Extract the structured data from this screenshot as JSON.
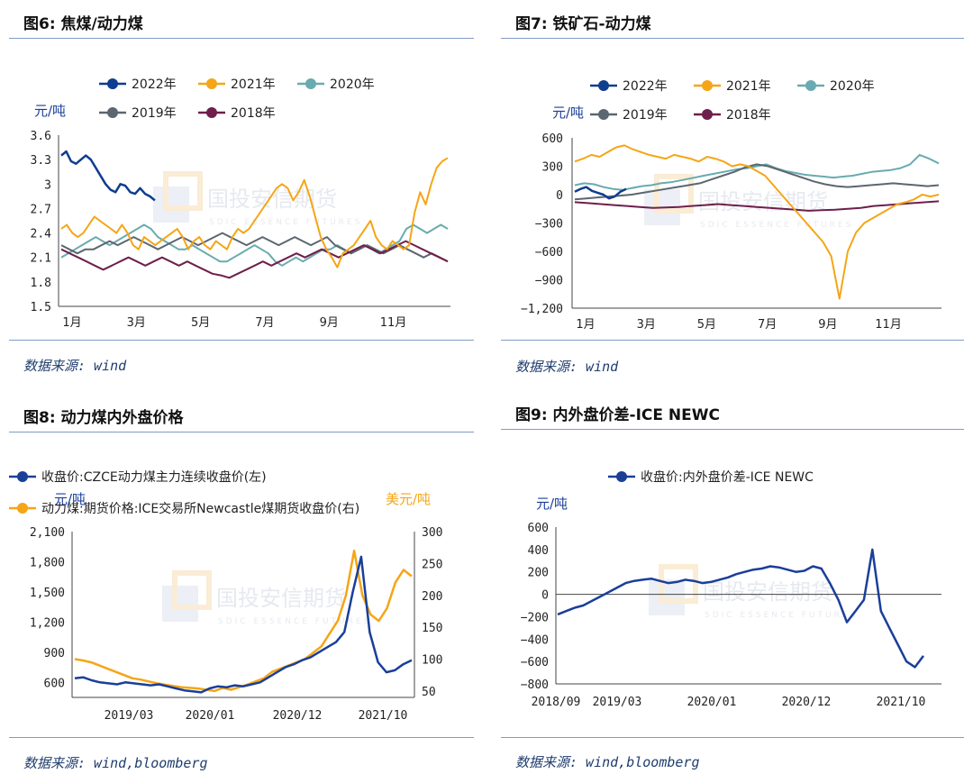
{
  "watermark": {
    "cn": "国投安信期货",
    "en": "SDIC ESSENCE FUTURES"
  },
  "colors": {
    "s2022": "#0f3d8f",
    "s2021": "#f5a516",
    "s2020": "#69abb0",
    "s2019": "#5c6670",
    "s2018": "#6e1f4b",
    "rule": "#7f9bc7",
    "blue_main": "#1a3f99"
  },
  "panels": {
    "fig6": {
      "title": "图6: 焦煤/动力煤",
      "source": "数据来源: wind",
      "chart_data": {
        "type": "line",
        "title": "图6: 焦煤/动力煤",
        "ylabel": "元/吨",
        "ylim": [
          1.5,
          3.6
        ],
        "yticks": [
          "3.6",
          "3.3",
          "3",
          "2.7",
          "2.4",
          "2.1",
          "1.8",
          "1.5"
        ],
        "xticks": [
          "1月",
          "3月",
          "5月",
          "7月",
          "9月",
          "11月"
        ],
        "legend_placement": "top",
        "series": [
          {
            "name": "2022年",
            "color": "#0f3d8f",
            "values": [
              3.35,
              3.4,
              3.28,
              3.25,
              3.3,
              3.35,
              3.3,
              3.2,
              3.1,
              3.0,
              2.93,
              2.9,
              3.0,
              2.98,
              2.9,
              2.88,
              2.95,
              2.88,
              2.85,
              2.8
            ]
          },
          {
            "name": "2021年",
            "color": "#f5a516",
            "values": [
              2.45,
              2.5,
              2.4,
              2.35,
              2.4,
              2.5,
              2.6,
              2.55,
              2.5,
              2.45,
              2.4,
              2.5,
              2.4,
              2.25,
              2.2,
              2.35,
              2.3,
              2.25,
              2.3,
              2.35,
              2.4,
              2.45,
              2.35,
              2.2,
              2.3,
              2.35,
              2.25,
              2.2,
              2.3,
              2.25,
              2.2,
              2.35,
              2.45,
              2.4,
              2.45,
              2.55,
              2.65,
              2.75,
              2.85,
              2.95,
              3.0,
              2.95,
              2.8,
              2.9,
              3.05,
              2.85,
              2.6,
              2.35,
              2.2,
              2.1,
              1.98,
              2.15,
              2.2,
              2.25,
              2.35,
              2.45,
              2.55,
              2.35,
              2.25,
              2.2,
              2.3,
              2.25,
              2.2,
              2.25,
              2.65,
              2.9,
              2.75,
              3.0,
              3.2,
              3.28,
              3.32
            ]
          },
          {
            "name": "2020年",
            "color": "#69abb0",
            "values": [
              2.1,
              2.15,
              2.2,
              2.25,
              2.3,
              2.35,
              2.3,
              2.25,
              2.3,
              2.35,
              2.4,
              2.45,
              2.5,
              2.45,
              2.35,
              2.3,
              2.25,
              2.2,
              2.2,
              2.25,
              2.2,
              2.15,
              2.1,
              2.05,
              2.05,
              2.1,
              2.15,
              2.2,
              2.25,
              2.2,
              2.15,
              2.05,
              2.0,
              2.05,
              2.1,
              2.05,
              2.1,
              2.15,
              2.2,
              2.2,
              2.25,
              2.2,
              2.15,
              2.2,
              2.25,
              2.2,
              2.15,
              2.2,
              2.25,
              2.3,
              2.45,
              2.5,
              2.45,
              2.4,
              2.45,
              2.5,
              2.45
            ]
          },
          {
            "name": "2019年",
            "color": "#5c6670",
            "values": [
              2.25,
              2.2,
              2.15,
              2.2,
              2.2,
              2.25,
              2.3,
              2.25,
              2.3,
              2.35,
              2.3,
              2.25,
              2.2,
              2.25,
              2.3,
              2.35,
              2.3,
              2.25,
              2.3,
              2.35,
              2.4,
              2.35,
              2.3,
              2.25,
              2.3,
              2.35,
              2.3,
              2.25,
              2.3,
              2.35,
              2.3,
              2.25,
              2.3,
              2.35,
              2.25,
              2.2,
              2.15,
              2.2,
              2.25,
              2.2,
              2.15,
              2.2,
              2.25,
              2.2,
              2.15,
              2.1,
              2.15,
              2.1,
              2.05
            ]
          },
          {
            "name": "2018年",
            "color": "#6e1f4b",
            "values": [
              2.2,
              2.15,
              2.1,
              2.05,
              2.0,
              1.95,
              2.0,
              2.05,
              2.1,
              2.05,
              2.0,
              2.05,
              2.1,
              2.05,
              2.0,
              2.05,
              2.0,
              1.95,
              1.9,
              1.88,
              1.85,
              1.9,
              1.95,
              2.0,
              2.05,
              2.0,
              2.05,
              2.1,
              2.15,
              2.1,
              2.15,
              2.2,
              2.15,
              2.1,
              2.15,
              2.2,
              2.25,
              2.2,
              2.15,
              2.2,
              2.25,
              2.3,
              2.25,
              2.2,
              2.15,
              2.1,
              2.05
            ]
          }
        ]
      }
    },
    "fig7": {
      "title": "图7: 铁矿石-动力煤",
      "source": "数据来源: wind",
      "chart_data": {
        "type": "line",
        "title": "图7: 铁矿石-动力煤",
        "ylabel": "元/吨",
        "ylim": [
          -1200,
          600
        ],
        "yticks": [
          "600",
          "300",
          "0",
          "−300",
          "−600",
          "−900",
          "−1,200"
        ],
        "xticks": [
          "1月",
          "3月",
          "5月",
          "7月",
          "9月",
          "11月"
        ],
        "legend_placement": "top",
        "series": [
          {
            "name": "2022年",
            "color": "#0f3d8f",
            "values": [
              30,
              60,
              80,
              40,
              20,
              0,
              -40,
              -20,
              30,
              60
            ]
          },
          {
            "name": "2021年",
            "color": "#f5a516",
            "values": [
              350,
              380,
              420,
              400,
              450,
              500,
              520,
              480,
              450,
              420,
              400,
              380,
              420,
              400,
              380,
              350,
              400,
              380,
              350,
              300,
              320,
              300,
              250,
              200,
              100,
              0,
              -100,
              -200,
              -300,
              -400,
              -500,
              -650,
              -1100,
              -600,
              -400,
              -300,
              -250,
              -200,
              -150,
              -100,
              -80,
              -50,
              0,
              -20,
              0
            ]
          },
          {
            "name": "2020年",
            "color": "#69abb0",
            "values": [
              100,
              120,
              110,
              80,
              60,
              50,
              70,
              90,
              100,
              120,
              130,
              150,
              170,
              190,
              210,
              230,
              250,
              270,
              280,
              300,
              320,
              280,
              250,
              230,
              210,
              200,
              190,
              180,
              190,
              200,
              220,
              240,
              250,
              260,
              280,
              320,
              420,
              380,
              330
            ]
          },
          {
            "name": "2019年",
            "color": "#5c6670",
            "values": [
              -50,
              -40,
              -30,
              -20,
              -10,
              0,
              20,
              40,
              60,
              80,
              100,
              120,
              160,
              200,
              240,
              290,
              320,
              300,
              260,
              220,
              180,
              140,
              110,
              90,
              80,
              90,
              100,
              110,
              120,
              110,
              100,
              90,
              100
            ]
          },
          {
            "name": "2018年",
            "color": "#6e1f4b",
            "values": [
              -80,
              -90,
              -100,
              -110,
              -120,
              -130,
              -140,
              -135,
              -130,
              -120,
              -110,
              -100,
              -110,
              -120,
              -130,
              -140,
              -150,
              -160,
              -170,
              -165,
              -160,
              -150,
              -140,
              -120,
              -110,
              -100,
              -90,
              -80,
              -70
            ]
          }
        ]
      }
    },
    "fig8": {
      "title": "图8: 动力煤内外盘价格",
      "source": "数据来源: wind,bloomberg",
      "chart_data": {
        "type": "line",
        "title": "图8: 动力煤内外盘价格",
        "ylabel_left": "元/吨",
        "ylabel_right": "美元/吨",
        "ylim_left": [
          450,
          2100
        ],
        "ylim_right": [
          40,
          300
        ],
        "yticks_left": [
          "2,100",
          "1,800",
          "1,500",
          "1,200",
          "900",
          "600"
        ],
        "yticks_right": [
          "300",
          "250",
          "200",
          "150",
          "100",
          "50"
        ],
        "xticks": [
          "2019/03",
          "2020/01",
          "2020/12",
          "2021/10"
        ],
        "legend_placement": "top-left",
        "series": [
          {
            "name": "收盘价:CZCE动力煤主力连续收盘价(左)",
            "axis": "left",
            "color": "#1a3f99",
            "values": [
              640,
              650,
              620,
              600,
              590,
              580,
              600,
              590,
              580,
              570,
              580,
              560,
              540,
              520,
              510,
              500,
              540,
              560,
              550,
              570,
              560,
              580,
              600,
              650,
              700,
              750,
              780,
              820,
              850,
              900,
              950,
              1000,
              1100,
              1500,
              1850,
              1100,
              800,
              700,
              720,
              780,
              820
            ]
          },
          {
            "name": "动力煤:期货价格:ICE交易所Newcastle煤期货收盘价(右)",
            "axis": "right",
            "color": "#f5a516",
            "values": [
              100,
              98,
              95,
              90,
              85,
              80,
              75,
              70,
              68,
              65,
              62,
              60,
              58,
              56,
              55,
              54,
              52,
              50,
              55,
              52,
              56,
              60,
              65,
              70,
              80,
              85,
              90,
              95,
              100,
              110,
              120,
              140,
              160,
              200,
              270,
              200,
              170,
              160,
              180,
              220,
              240,
              230
            ]
          }
        ]
      }
    },
    "fig9": {
      "title": "图9: 内外盘价差-ICE NEWC",
      "source": "数据来源: wind,bloomberg",
      "chart_data": {
        "type": "line",
        "title": "图9: 内外盘价差-ICE NEWC",
        "ylabel": "元/吨",
        "ylim": [
          -800,
          600
        ],
        "yticks": [
          "600",
          "400",
          "200",
          "0",
          "−200",
          "−400",
          "−600",
          "−800"
        ],
        "xticks": [
          "2018/09",
          "2019/03",
          "2020/01",
          "2020/12",
          "2021/10"
        ],
        "legend_placement": "top",
        "series": [
          {
            "name": "收盘价:内外盘价差-ICE NEWC",
            "color": "#1a3f99",
            "values": [
              -180,
              -150,
              -120,
              -100,
              -60,
              -20,
              20,
              60,
              100,
              120,
              130,
              140,
              120,
              100,
              110,
              130,
              120,
              100,
              110,
              130,
              150,
              180,
              200,
              220,
              230,
              250,
              240,
              220,
              200,
              210,
              250,
              230,
              100,
              -50,
              -250,
              -150,
              -50,
              400,
              -150,
              -300,
              -450,
              -600,
              -650,
              -550
            ]
          }
        ]
      }
    }
  }
}
